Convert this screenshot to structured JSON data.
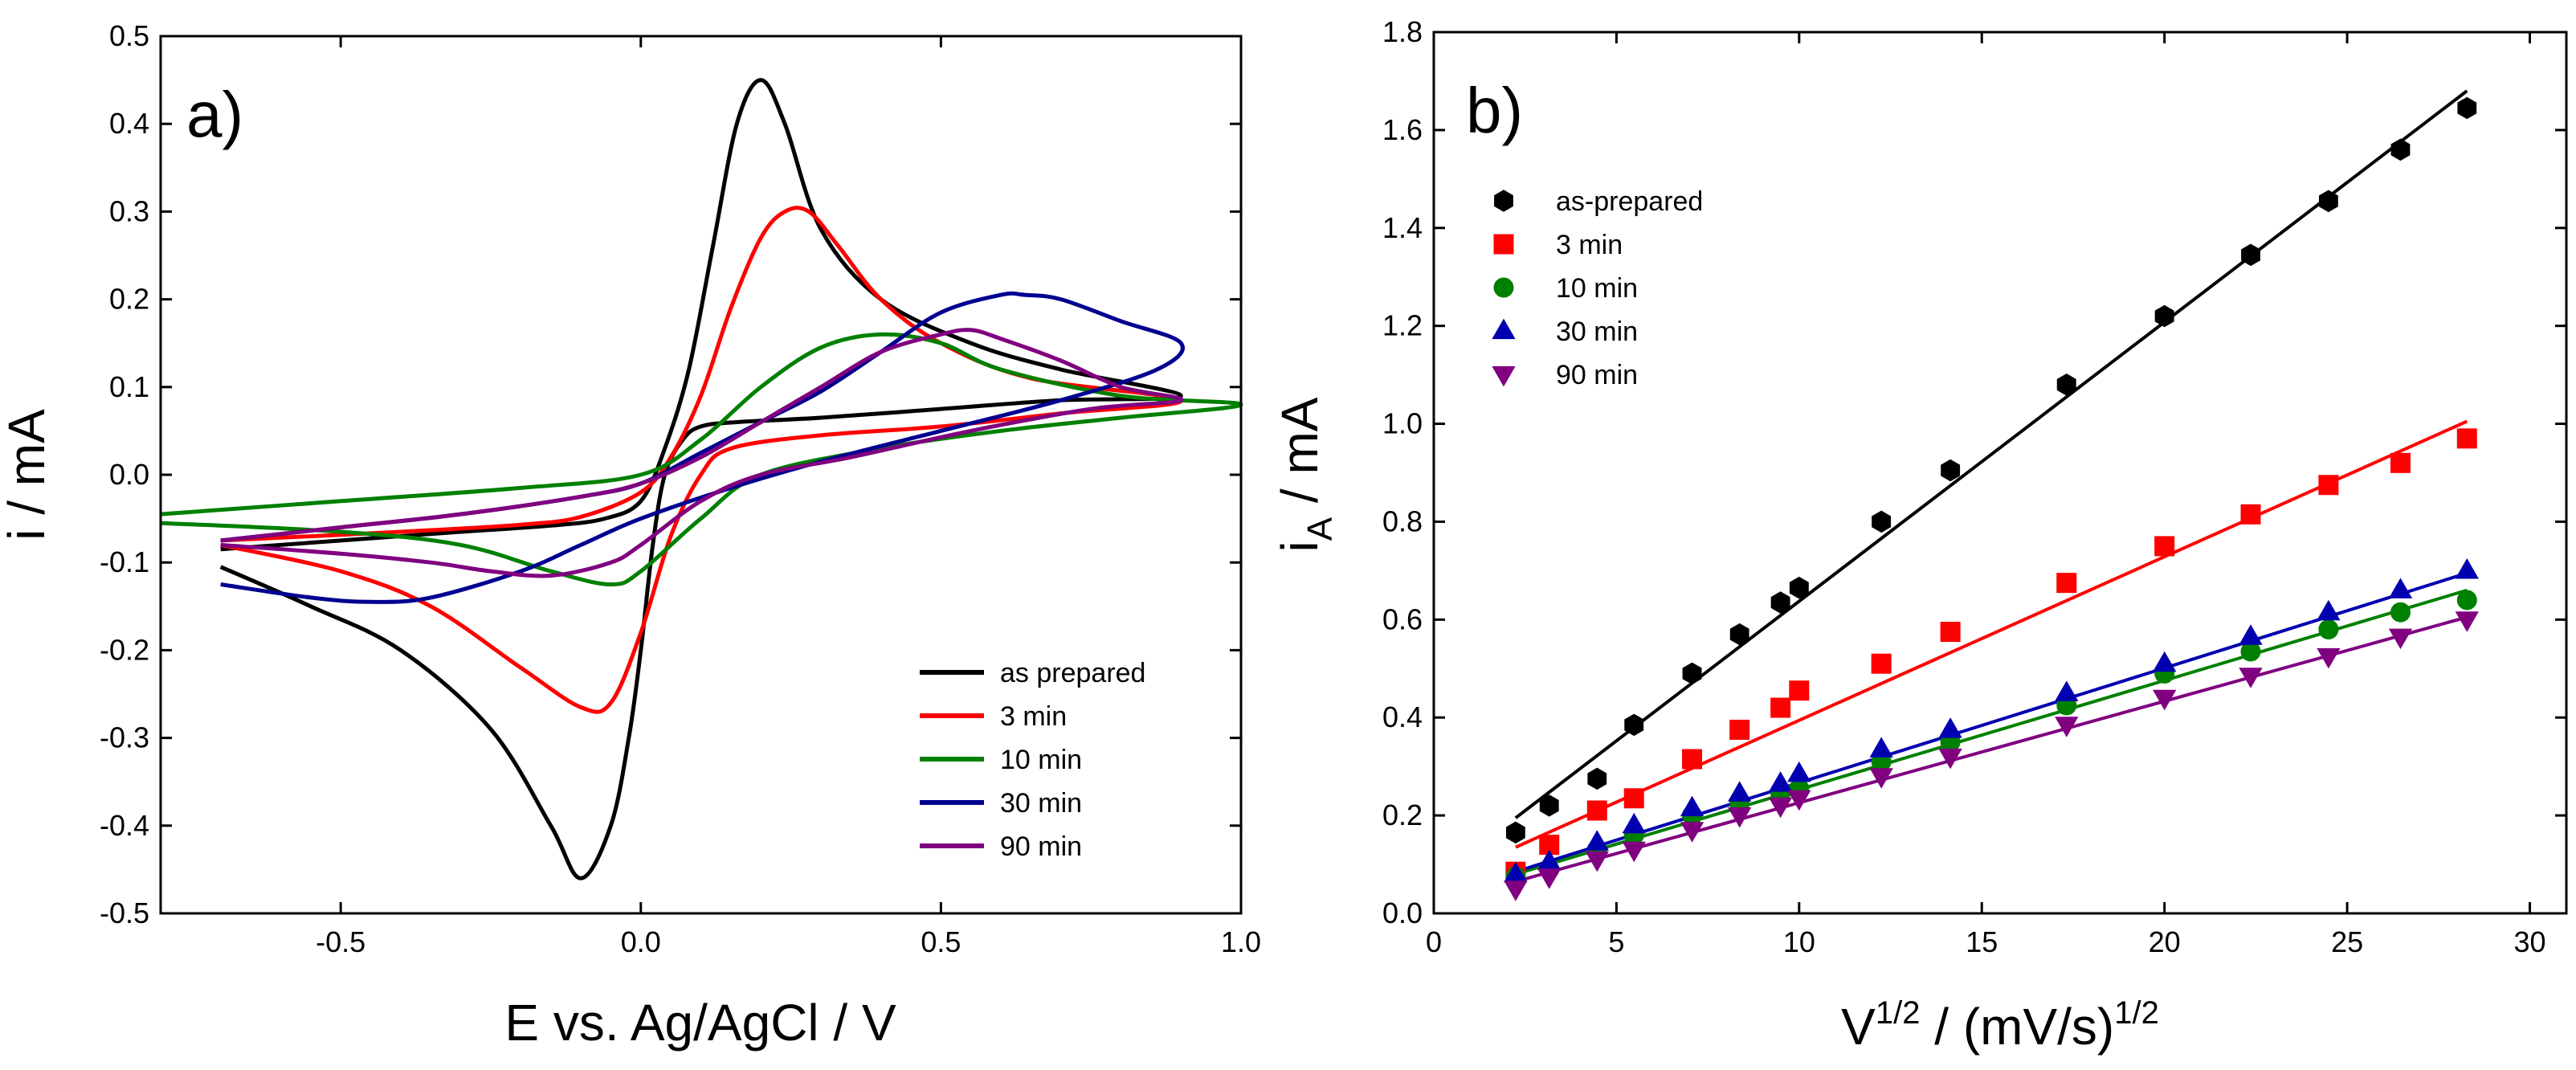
{
  "chart_data": [
    {
      "id": "a",
      "type": "line",
      "panel_label": "a)",
      "xlabel": "E vs. Ag/AgCl / V",
      "ylabel": "i / mA",
      "xlim": [
        -0.8,
        1.0
      ],
      "ylim": [
        -0.5,
        0.5
      ],
      "x_ticks": [
        -0.5,
        0.0,
        0.5,
        1.0
      ],
      "x_tick_labels": [
        "-0.5",
        "0.0",
        "0.5",
        "1.0"
      ],
      "y_ticks": [
        -0.5,
        -0.4,
        -0.3,
        -0.2,
        -0.1,
        0.0,
        0.1,
        0.2,
        0.3,
        0.4,
        0.5
      ],
      "y_tick_labels": [
        "-0.5",
        "-0.4",
        "-0.3",
        "-0.2",
        "-0.1",
        "0.0",
        "0.1",
        "0.2",
        "0.3",
        "0.4",
        "0.5"
      ],
      "legend_position": "bottom-right",
      "series": [
        {
          "name": "as prepared",
          "color": "#000000",
          "x": [
            -0.7,
            -0.5,
            -0.3,
            -0.15,
            -0.06,
            0.0,
            0.04,
            0.08,
            0.12,
            0.16,
            0.2,
            0.24,
            0.3,
            0.4,
            0.55,
            0.7,
            0.9,
            0.7,
            0.5,
            0.3,
            0.16,
            0.1,
            0.07,
            0.04,
            0.02,
            0.0,
            -0.02,
            -0.05,
            -0.1,
            -0.15,
            -0.25,
            -0.4,
            -0.55,
            -0.7
          ],
          "y": [
            -0.085,
            -0.075,
            -0.065,
            -0.058,
            -0.05,
            -0.03,
            0.03,
            0.12,
            0.26,
            0.4,
            0.45,
            0.4,
            0.28,
            0.2,
            0.15,
            0.12,
            0.09,
            0.085,
            0.075,
            0.065,
            0.06,
            0.055,
            0.04,
            0.0,
            -0.08,
            -0.2,
            -0.3,
            -0.4,
            -0.46,
            -0.4,
            -0.29,
            -0.2,
            -0.15,
            -0.105
          ]
        },
        {
          "name": "3 min",
          "color": "#ff0000",
          "x": [
            -0.7,
            -0.4,
            -0.2,
            -0.1,
            0.0,
            0.05,
            0.1,
            0.15,
            0.2,
            0.24,
            0.28,
            0.33,
            0.4,
            0.5,
            0.65,
            0.9,
            0.7,
            0.5,
            0.3,
            0.15,
            0.1,
            0.05,
            0.0,
            -0.05,
            -0.1,
            -0.2,
            -0.35,
            -0.5,
            -0.7
          ],
          "y": [
            -0.075,
            -0.065,
            -0.057,
            -0.048,
            -0.02,
            0.02,
            0.09,
            0.19,
            0.27,
            0.3,
            0.3,
            0.26,
            0.2,
            0.15,
            0.11,
            0.085,
            0.07,
            0.055,
            0.045,
            0.03,
            0.0,
            -0.07,
            -0.18,
            -0.26,
            -0.265,
            -0.22,
            -0.15,
            -0.11,
            -0.08
          ]
        },
        {
          "name": "10 min",
          "color": "#008000",
          "x": [
            -0.8,
            -0.5,
            -0.2,
            0.0,
            0.1,
            0.2,
            0.3,
            0.4,
            0.5,
            0.6,
            0.8,
            1.0,
            0.8,
            0.6,
            0.4,
            0.2,
            0.1,
            0.0,
            -0.05,
            -0.15,
            -0.3,
            -0.5,
            -0.8
          ],
          "y": [
            -0.045,
            -0.03,
            -0.015,
            0.0,
            0.04,
            0.1,
            0.145,
            0.16,
            0.15,
            0.12,
            0.09,
            0.08,
            0.065,
            0.05,
            0.03,
            0.0,
            -0.05,
            -0.11,
            -0.125,
            -0.11,
            -0.08,
            -0.065,
            -0.055
          ]
        },
        {
          "name": "30 min",
          "color": "#000090",
          "x": [
            -0.7,
            -0.5,
            -0.3,
            -0.1,
            0.0,
            0.1,
            0.2,
            0.3,
            0.4,
            0.5,
            0.6,
            0.64,
            0.7,
            0.8,
            0.9,
            0.86,
            0.7,
            0.5,
            0.3,
            0.15,
            0.0,
            -0.1,
            -0.2,
            -0.35,
            -0.45,
            -0.55,
            -0.7
          ],
          "y": [
            -0.075,
            -0.06,
            -0.045,
            -0.025,
            -0.01,
            0.025,
            0.06,
            0.095,
            0.14,
            0.185,
            0.205,
            0.205,
            0.2,
            0.175,
            0.15,
            0.12,
            0.085,
            0.05,
            0.015,
            -0.015,
            -0.05,
            -0.08,
            -0.11,
            -0.14,
            -0.145,
            -0.14,
            -0.125
          ]
        },
        {
          "name": "90 min",
          "color": "#800080",
          "x": [
            -0.7,
            -0.5,
            -0.3,
            -0.1,
            0.0,
            0.1,
            0.2,
            0.3,
            0.4,
            0.5,
            0.55,
            0.6,
            0.7,
            0.8,
            0.9,
            0.75,
            0.55,
            0.35,
            0.2,
            0.1,
            0.0,
            -0.05,
            -0.15,
            -0.25,
            -0.35,
            -0.5,
            -0.7
          ],
          "y": [
            -0.075,
            -0.06,
            -0.045,
            -0.025,
            -0.01,
            0.02,
            0.06,
            0.1,
            0.14,
            0.16,
            0.165,
            0.155,
            0.13,
            0.1,
            0.085,
            0.075,
            0.05,
            0.02,
            0.0,
            -0.03,
            -0.08,
            -0.1,
            -0.115,
            -0.11,
            -0.1,
            -0.09,
            -0.08
          ]
        }
      ]
    },
    {
      "id": "b",
      "type": "scatter",
      "panel_label": "b)",
      "xlabel": "V",
      "xlabel_sup1": "1/2",
      "xlabel_mid": " / (mV/s)",
      "xlabel_sup2": "1/2",
      "ylabel": "i",
      "ylabel_sub": "A",
      "ylabel_tail": " / mA",
      "xlim": [
        0,
        31
      ],
      "ylim": [
        0,
        1.8
      ],
      "x_ticks": [
        0,
        5,
        10,
        15,
        20,
        25,
        30
      ],
      "x_tick_labels": [
        "0",
        "5",
        "10",
        "15",
        "20",
        "25",
        "30"
      ],
      "y_ticks": [
        0.0,
        0.2,
        0.4,
        0.6,
        0.8,
        1.0,
        1.2,
        1.4,
        1.6,
        1.8
      ],
      "y_tick_labels": [
        "0.0",
        "0.2",
        "0.4",
        "0.6",
        "0.8",
        "1.0",
        "1.2",
        "1.4",
        "1.6",
        "1.8"
      ],
      "legend_position": "top-left",
      "x": [
        2.24,
        3.16,
        4.47,
        5.48,
        7.07,
        8.37,
        9.49,
        10.0,
        12.25,
        14.14,
        17.32,
        20.0,
        22.36,
        24.49,
        26.46,
        28.28
      ],
      "series": [
        {
          "name": "as-prepared",
          "color": "#000000",
          "marker": "hexagon",
          "values": [
            0.165,
            0.22,
            0.275,
            0.385,
            0.49,
            0.57,
            0.635,
            0.665,
            0.8,
            0.905,
            1.08,
            1.22,
            1.345,
            1.455,
            1.56,
            1.645
          ],
          "fit": {
            "x": [
              2.24,
              28.28
            ],
            "y": [
              0.195,
              1.68
            ]
          }
        },
        {
          "name": "3 min",
          "color": "#ff0000",
          "marker": "square",
          "values": [
            0.085,
            0.14,
            0.21,
            0.235,
            0.315,
            0.375,
            0.42,
            0.455,
            0.51,
            0.575,
            0.675,
            0.75,
            0.815,
            0.875,
            0.92,
            0.97
          ],
          "fit": {
            "x": [
              2.24,
              28.28
            ],
            "y": [
              0.135,
              1.005
            ]
          }
        },
        {
          "name": "10 min",
          "color": "#008000",
          "marker": "circle",
          "values": [
            0.075,
            0.09,
            0.13,
            0.16,
            0.2,
            0.225,
            0.245,
            0.255,
            0.31,
            0.35,
            0.425,
            0.49,
            0.535,
            0.58,
            0.615,
            0.64
          ],
          "fit": {
            "x": [
              2.24,
              28.28
            ],
            "y": [
              0.08,
              0.66
            ]
          }
        },
        {
          "name": "30 min",
          "color": "#0000b0",
          "marker": "triangle-up",
          "values": [
            0.08,
            0.105,
            0.145,
            0.18,
            0.215,
            0.245,
            0.265,
            0.285,
            0.335,
            0.375,
            0.45,
            0.51,
            0.565,
            0.615,
            0.66,
            0.7
          ],
          "fit": {
            "x": [
              2.24,
              28.28
            ],
            "y": [
              0.085,
              0.695
            ]
          }
        },
        {
          "name": "90 min",
          "color": "#800080",
          "marker": "triangle-down",
          "values": [
            0.05,
            0.075,
            0.11,
            0.13,
            0.17,
            0.2,
            0.22,
            0.235,
            0.28,
            0.32,
            0.385,
            0.44,
            0.485,
            0.525,
            0.565,
            0.6
          ],
          "fit": {
            "x": [
              2.24,
              28.28
            ],
            "y": [
              0.065,
              0.605
            ]
          }
        }
      ]
    }
  ]
}
